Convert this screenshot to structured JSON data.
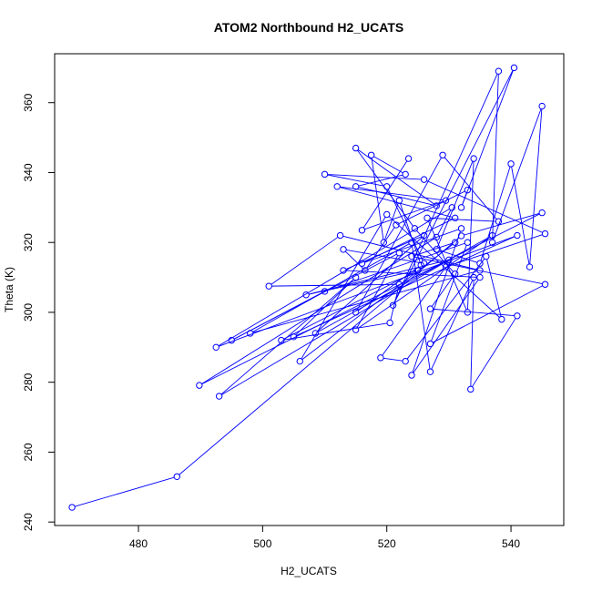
{
  "chart_data": {
    "type": "line",
    "title": "ATOM2 Northbound H2_UCATS",
    "xlabel": "H2_UCATS",
    "ylabel": "Theta (K)",
    "xlim": [
      466.5,
      548.5
    ],
    "ylim": [
      239,
      374
    ],
    "x_ticks": [
      480,
      500,
      520,
      540
    ],
    "y_ticks": [
      240,
      260,
      280,
      300,
      320,
      340,
      360
    ],
    "grid": false,
    "series": [
      {
        "color": "#0000ff",
        "points": [
          [
            469.3,
            244.2
          ],
          [
            486.2,
            253.0
          ],
          [
            532.0,
            321.9
          ],
          [
            545.0,
            328.5
          ],
          [
            489.8,
            279.1
          ],
          [
            528.0,
            321.5
          ],
          [
            530.5,
            330.0
          ],
          [
            492.5,
            290.0
          ],
          [
            541.0,
            322.0
          ],
          [
            505.0,
            293.0
          ],
          [
            515.0,
            310.0
          ],
          [
            493.0,
            276.0
          ],
          [
            530.0,
            315.0
          ],
          [
            507.0,
            305.0
          ],
          [
            525.0,
            312.0
          ],
          [
            503.0,
            292.0
          ],
          [
            520.5,
            297.0
          ],
          [
            522.0,
            308.0
          ],
          [
            501.0,
            307.5
          ],
          [
            512.5,
            322.0
          ],
          [
            535.0,
            312.0
          ],
          [
            498.0,
            294.0
          ],
          [
            524.0,
            320.0
          ],
          [
            527.0,
            283.0
          ],
          [
            534.0,
            310.0
          ],
          [
            533.5,
            278.0
          ],
          [
            541.0,
            299.0
          ],
          [
            527.0,
            301.0
          ],
          [
            531.0,
            311.0
          ],
          [
            524.5,
            324.0
          ],
          [
            515.0,
            347.0
          ],
          [
            528.0,
            330.5
          ],
          [
            515.0,
            336.0
          ],
          [
            523.0,
            339.5
          ],
          [
            517.5,
            345.0
          ],
          [
            519.5,
            320.0
          ],
          [
            522.0,
            332.0
          ],
          [
            525.5,
            313.5
          ],
          [
            515.0,
            300.0
          ],
          [
            529.0,
            345.0
          ],
          [
            538.0,
            326.0
          ],
          [
            526.5,
            327.0
          ],
          [
            533.0,
            300.0
          ],
          [
            534.0,
            344.0
          ],
          [
            528.0,
            318.0
          ],
          [
            535.0,
            314.0
          ],
          [
            540.0,
            342.5
          ],
          [
            543.0,
            313.0
          ],
          [
            545.0,
            359.0
          ],
          [
            537.0,
            320.0
          ],
          [
            538.0,
            369.0
          ],
          [
            521.0,
            302.0
          ],
          [
            540.5,
            370.0
          ],
          [
            532.0,
            330.0
          ],
          [
            533.0,
            335.0
          ],
          [
            521.5,
            325.0
          ],
          [
            516.5,
            312.0
          ],
          [
            513.0,
            318.0
          ],
          [
            526.0,
            314.0
          ],
          [
            520.0,
            336.0
          ],
          [
            510.0,
            339.5
          ],
          [
            526.0,
            338.0
          ],
          [
            545.5,
            322.5
          ],
          [
            529.5,
            313.0
          ],
          [
            519.0,
            287.0
          ],
          [
            523.0,
            286.0
          ],
          [
            536.0,
            316.0
          ],
          [
            538.5,
            298.0
          ],
          [
            520.0,
            328.0
          ],
          [
            506.0,
            286.0
          ],
          [
            531.0,
            320.0
          ],
          [
            524.0,
            316.0
          ],
          [
            545.5,
            308.0
          ],
          [
            527.0,
            291.0
          ],
          [
            533.0,
            320.0
          ],
          [
            510.0,
            306.0
          ],
          [
            495.0,
            292.0
          ],
          [
            522.0,
            317.0
          ],
          [
            515.0,
            295.0
          ],
          [
            537.0,
            322.0
          ],
          [
            508.5,
            294.0
          ],
          [
            526.0,
            322.0
          ],
          [
            513.0,
            312.0
          ],
          [
            535.0,
            310.0
          ],
          [
            524.0,
            282.0
          ],
          [
            532.0,
            324.0
          ],
          [
            516.0,
            314.0
          ],
          [
            531.0,
            327.0
          ],
          [
            512.0,
            336.0
          ],
          [
            529.5,
            332.0
          ],
          [
            516.0,
            323.5
          ],
          [
            523.5,
            344.0
          ]
        ]
      }
    ]
  }
}
